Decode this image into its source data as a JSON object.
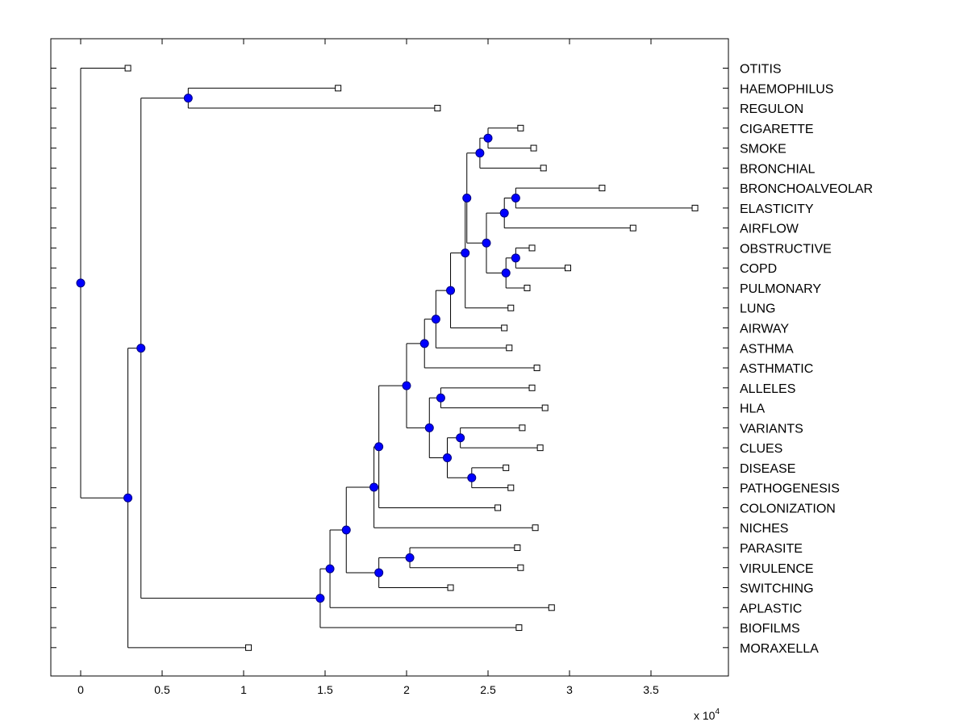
{
  "chart_data": {
    "type": "dendrogram",
    "orientation": "horizontal",
    "title": "",
    "xlabel": "",
    "ylabel": "",
    "x_scale_label": {
      "base": "x 10",
      "exponent": "4"
    },
    "xlim": [
      -0.19,
      3.98
    ],
    "x_ticks": [
      0,
      0.5,
      1,
      1.5,
      2,
      2.5,
      3,
      3.5
    ],
    "x_tick_labels": [
      "0",
      "0.5",
      "1",
      "1.5",
      "2",
      "2.5",
      "3",
      "3.5"
    ],
    "leaf_labels": [
      "OTITIS",
      "HAEMOPHILUS",
      "REGULON",
      "CIGARETTE",
      "SMOKE",
      "BRONCHIAL",
      "BRONCHOALVEOLAR",
      "ELASTICITY",
      "AIRFLOW",
      "OBSTRUCTIVE",
      "COPD",
      "PULMONARY",
      "LUNG",
      "AIRWAY",
      "ASTHMA",
      "ASTHMATIC",
      "ALLELES",
      "HLA",
      "VARIANTS",
      "CLUES",
      "DISEASE",
      "PATHOGENESIS",
      "COLONIZATION",
      "NICHES",
      "PARASITE",
      "VIRULENCE",
      "SWITCHING",
      "APLASTIC",
      "BIOFILMS",
      "MORAXELLA"
    ],
    "leaf_values": [
      0.29,
      1.58,
      2.19,
      2.7,
      2.78,
      2.84,
      3.2,
      3.77,
      3.39,
      2.77,
      2.99,
      2.74,
      2.64,
      2.6,
      2.63,
      2.8,
      2.77,
      2.85,
      2.71,
      2.82,
      2.61,
      2.64,
      2.56,
      2.79,
      2.68,
      2.7,
      2.27,
      2.89,
      2.69,
      1.03
    ],
    "internal_nodes": [
      {
        "id": "n_root",
        "value": 0.0,
        "children": [
          "L0",
          "n_1"
        ]
      },
      {
        "id": "n_1",
        "value": 0.29,
        "children": [
          "n_2",
          "L29"
        ]
      },
      {
        "id": "n_2",
        "value": 0.37,
        "children": [
          "n_3",
          "n_4"
        ]
      },
      {
        "id": "n_3",
        "value": 0.66,
        "children": [
          "L1",
          "L2"
        ]
      },
      {
        "id": "n_4",
        "value": 1.47,
        "children": [
          "n_5",
          "L28"
        ]
      },
      {
        "id": "n_5",
        "value": 1.53,
        "children": [
          "n_6",
          "L27"
        ]
      },
      {
        "id": "n_6",
        "value": 1.63,
        "children": [
          "n_7",
          "n_8"
        ]
      },
      {
        "id": "n_7",
        "value": 1.8,
        "children": [
          "n_9",
          "L23"
        ]
      },
      {
        "id": "n_8",
        "value": 1.83,
        "children": [
          "n_10",
          "L26"
        ]
      },
      {
        "id": "n_9",
        "value": 1.83,
        "children": [
          "n_11",
          "L22"
        ]
      },
      {
        "id": "n_10",
        "value": 2.02,
        "children": [
          "L24",
          "L25"
        ]
      },
      {
        "id": "n_11",
        "value": 2.0,
        "children": [
          "n_12",
          "n_13"
        ]
      },
      {
        "id": "n_12",
        "value": 2.11,
        "children": [
          "n_14",
          "L15"
        ]
      },
      {
        "id": "n_13",
        "value": 2.14,
        "children": [
          "n_15",
          "n_16"
        ]
      },
      {
        "id": "n_14",
        "value": 2.18,
        "children": [
          "n_17",
          "L14"
        ]
      },
      {
        "id": "n_15",
        "value": 2.21,
        "children": [
          "L16",
          "L17"
        ]
      },
      {
        "id": "n_16",
        "value": 2.25,
        "children": [
          "n_18",
          "n_19"
        ]
      },
      {
        "id": "n_17",
        "value": 2.27,
        "children": [
          "n_20",
          "L13"
        ]
      },
      {
        "id": "n_18",
        "value": 2.33,
        "children": [
          "L18",
          "L19"
        ]
      },
      {
        "id": "n_19",
        "value": 2.4,
        "children": [
          "L20",
          "L21"
        ]
      },
      {
        "id": "n_20",
        "value": 2.36,
        "children": [
          "n_21",
          "L12"
        ]
      },
      {
        "id": "n_21",
        "value": 2.37,
        "children": [
          "n_22",
          "n_23"
        ]
      },
      {
        "id": "n_22",
        "value": 2.45,
        "children": [
          "n_24",
          "L5"
        ]
      },
      {
        "id": "n_23",
        "value": 2.49,
        "children": [
          "n_25",
          "n_26"
        ]
      },
      {
        "id": "n_24",
        "value": 2.5,
        "children": [
          "L3",
          "L4"
        ]
      },
      {
        "id": "n_25",
        "value": 2.6,
        "children": [
          "n_27",
          "L8"
        ]
      },
      {
        "id": "n_26",
        "value": 2.61,
        "children": [
          "n_28",
          "L11"
        ]
      },
      {
        "id": "n_27",
        "value": 2.67,
        "children": [
          "L6",
          "L7"
        ]
      },
      {
        "id": "n_28",
        "value": 2.67,
        "children": [
          "L9",
          "L10"
        ]
      }
    ],
    "colors": {
      "axes": "#000000",
      "branch": "#000000",
      "node_fill": "#0000ff",
      "node_edge": "#000080",
      "leaf_fill": "#ffffff"
    }
  }
}
